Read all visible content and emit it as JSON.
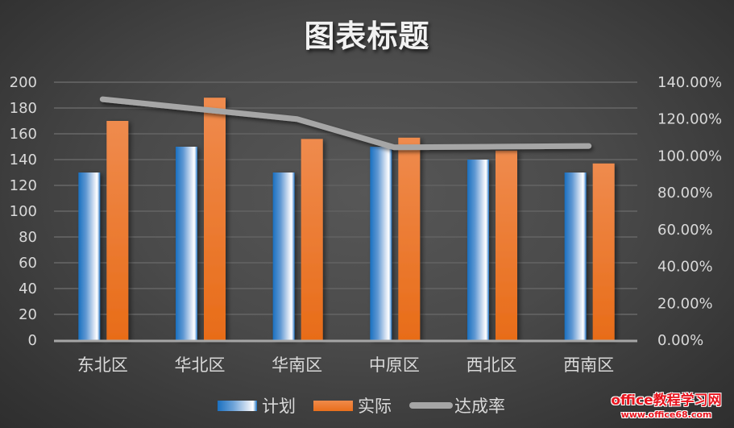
{
  "chart_data": {
    "type": "bar",
    "combo": "clustered column + line on secondary axis",
    "title": "图表标题",
    "categories": [
      "东北区",
      "华北区",
      "华南区",
      "中原区",
      "西北区",
      "西南区"
    ],
    "series": [
      {
        "name": "计划",
        "type": "bar",
        "axis": "primary",
        "values": [
          130,
          150,
          130,
          150,
          140,
          130
        ],
        "color": "#1a70c0"
      },
      {
        "name": "实际",
        "type": "bar",
        "axis": "primary",
        "values": [
          170,
          188,
          156,
          157,
          147,
          137
        ],
        "color": "#ed7d31"
      },
      {
        "name": "达成率",
        "type": "line",
        "axis": "secondary",
        "values": [
          1.3077,
          1.2533,
          1.2,
          1.0467,
          1.05,
          1.0538
        ],
        "color": "#a6a6a6"
      }
    ],
    "xlabel": "",
    "ylabel": "",
    "ylim": [
      0,
      200
    ],
    "y_ticks": [
      "0",
      "20",
      "40",
      "60",
      "80",
      "100",
      "120",
      "140",
      "160",
      "180",
      "200"
    ],
    "y2lim": [
      0,
      1.4
    ],
    "y2_ticks": [
      "0.00%",
      "20.00%",
      "40.00%",
      "60.00%",
      "80.00%",
      "100.00%",
      "120.00%",
      "140.00%"
    ],
    "grid": true,
    "legend_position": "bottom"
  },
  "title": "图表标题",
  "legend": {
    "plan": "计划",
    "actual": "实际",
    "rate": "达成率"
  },
  "colors": {
    "plan": "#1a70c0",
    "actual": "#ed7d31",
    "rate": "#a6a6a6",
    "background": "#484848",
    "grid": "#5e5e5e",
    "text": "#d9d9d9"
  },
  "watermark": {
    "line1": "office教程学习网",
    "line2": "www.office68.com"
  }
}
